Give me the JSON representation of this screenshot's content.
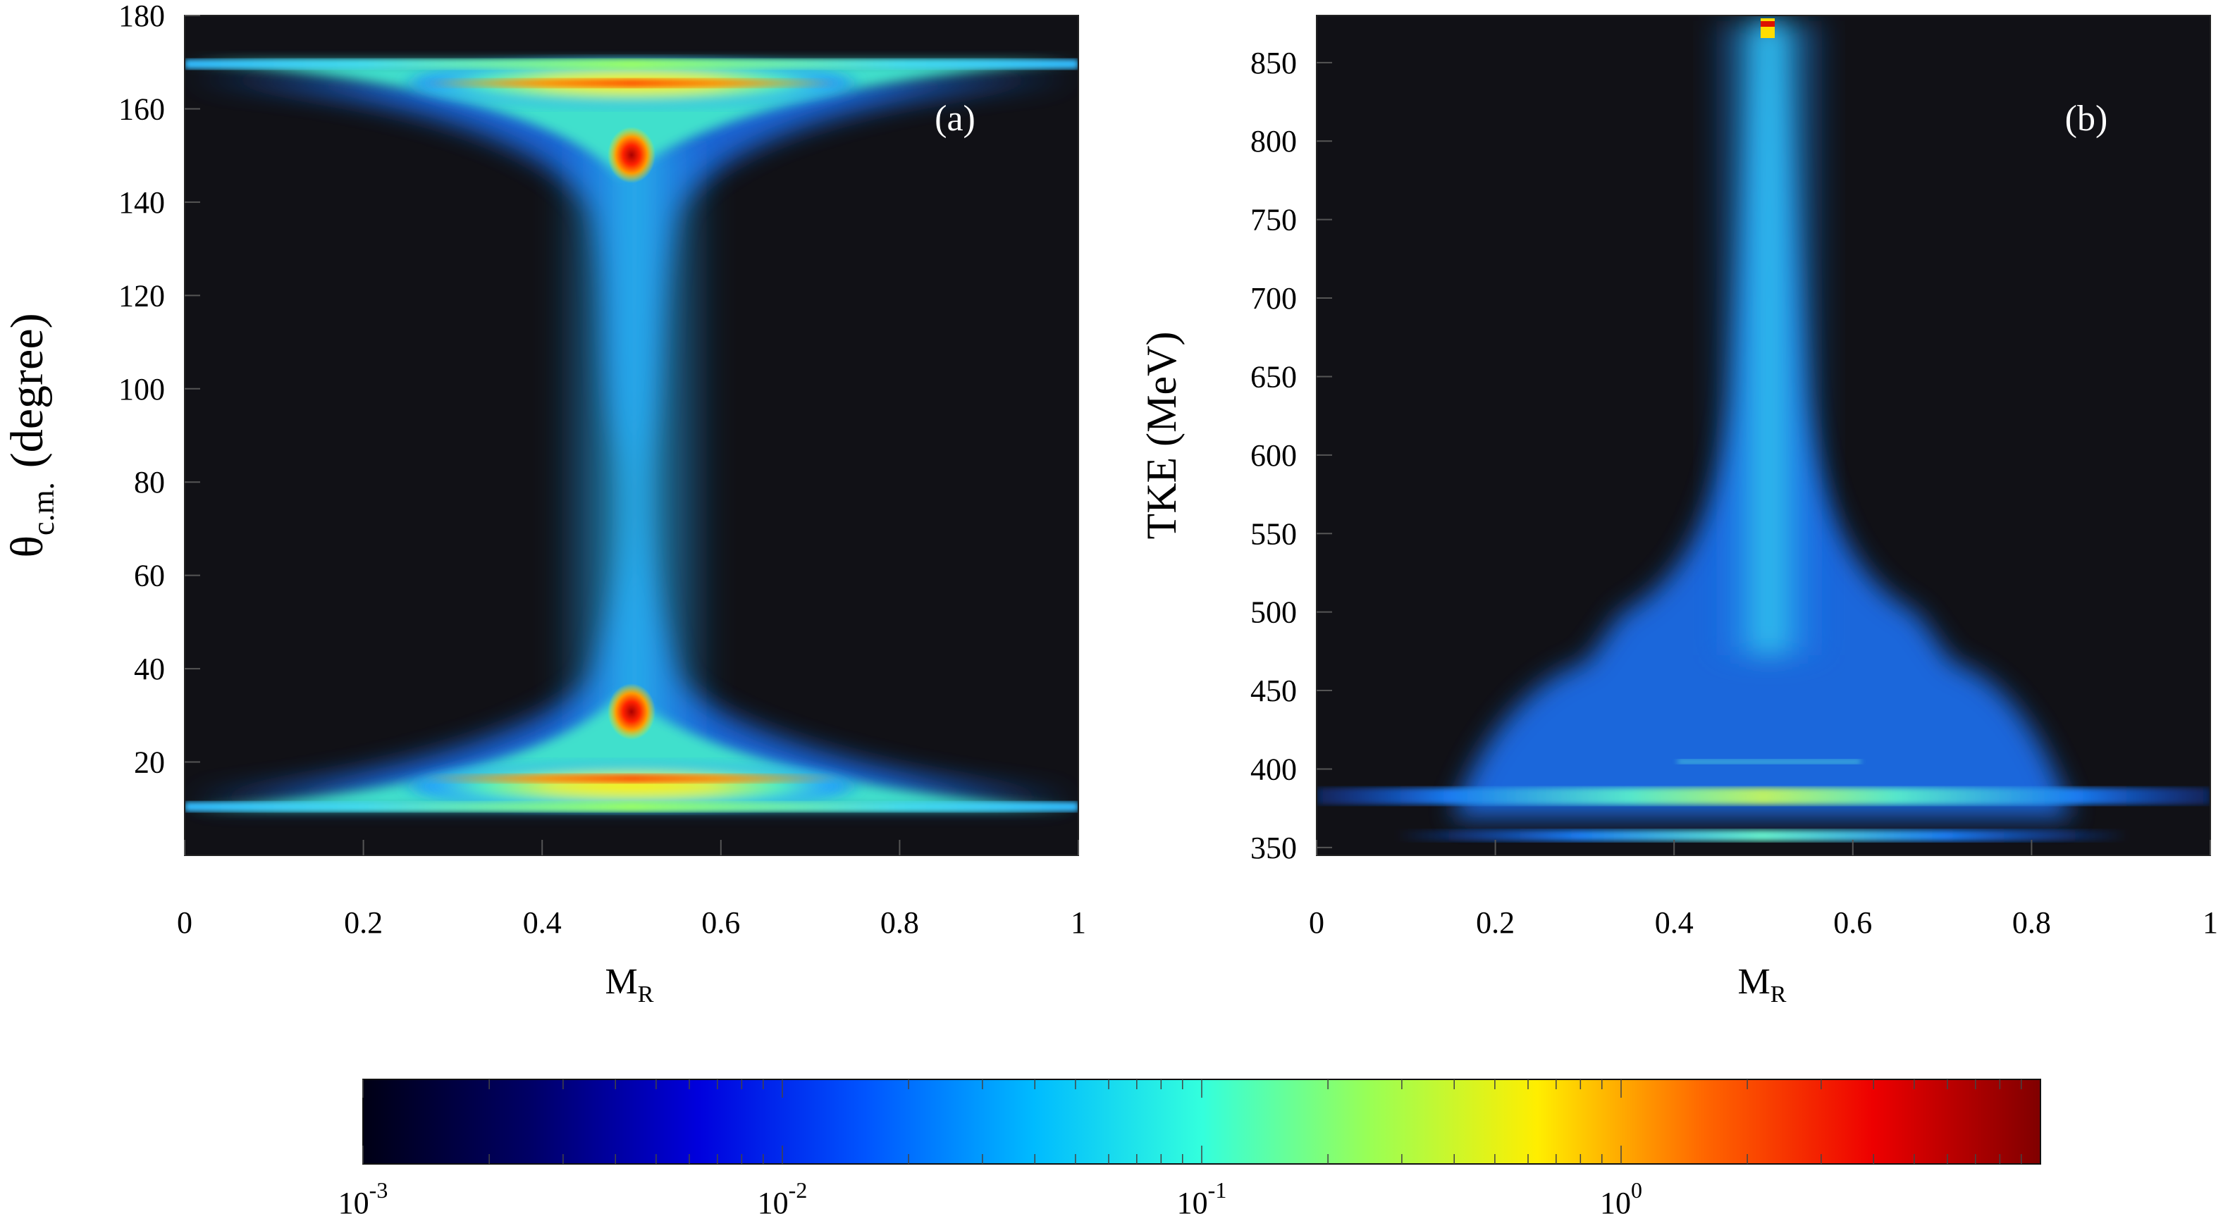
{
  "chart_data": [
    {
      "type": "heatmap",
      "panel_label": "(a)",
      "xlabel": "M",
      "xlabel_sub": "R",
      "ylabel": "θ",
      "ylabel_sub": "c.m.",
      "ylabel_unit": "(degree)",
      "xlim": [
        0,
        1
      ],
      "ylim": [
        0,
        180
      ],
      "xticks": [
        0,
        0.2,
        0.4,
        0.6,
        0.8,
        1
      ],
      "xtick_labels": [
        "0",
        "0.2",
        "0.4",
        "0.6",
        "0.8",
        "1"
      ],
      "yticks": [
        20,
        40,
        60,
        80,
        100,
        120,
        140,
        160,
        180
      ],
      "ytick_labels": [
        "20",
        "40",
        "60",
        "80",
        "100",
        "120",
        "140",
        "160",
        "180"
      ],
      "features": [
        {
          "name": "band_low",
          "y_range": [
            11,
            14
          ],
          "x_range": [
            0,
            1
          ],
          "level": 0.02
        },
        {
          "name": "band_high",
          "y_range": [
            169,
            171
          ],
          "x_range": [
            0,
            1
          ],
          "level": 0.02
        },
        {
          "name": "ridge_low",
          "y": 16,
          "x_center": 0.5,
          "level": 0.8
        },
        {
          "name": "ridge_high",
          "y": 165,
          "x_center": 0.5,
          "level": 0.8
        },
        {
          "name": "peak_low",
          "x": 0.5,
          "y": 35,
          "level": 3
        },
        {
          "name": "peak_high",
          "x": 0.5,
          "y": 146,
          "level": 3
        }
      ]
    },
    {
      "type": "heatmap",
      "panel_label": "(b)",
      "xlabel": "M",
      "xlabel_sub": "R",
      "ylabel": "TKE (MeV)",
      "xlim": [
        0,
        1
      ],
      "ylim": [
        345,
        880
      ],
      "xticks": [
        0,
        0.2,
        0.4,
        0.6,
        0.8,
        1
      ],
      "xtick_labels": [
        "0",
        "0.2",
        "0.4",
        "0.6",
        "0.8",
        "1"
      ],
      "yticks": [
        350,
        400,
        450,
        500,
        550,
        600,
        650,
        700,
        750,
        800,
        850
      ],
      "ytick_labels": [
        "350",
        "400",
        "450",
        "500",
        "550",
        "600",
        "650",
        "700",
        "750",
        "800",
        "850"
      ],
      "features": [
        {
          "name": "band_main",
          "y": 388,
          "x_range": [
            0,
            1
          ],
          "level": 0.03
        },
        {
          "name": "band_bright",
          "y": 386,
          "x_range": [
            0.2,
            0.8
          ],
          "level": 0.3
        },
        {
          "name": "band_lower",
          "y": 362,
          "x_range": [
            0.1,
            0.9
          ],
          "level": 0.05
        },
        {
          "name": "line_410",
          "y": 410,
          "x_range": [
            0.4,
            0.6
          ],
          "level": 0.1
        },
        {
          "name": "peak_top",
          "x": 0.5,
          "y": 873,
          "level": 3
        }
      ]
    }
  ],
  "colorbar": {
    "scale": "log",
    "range": [
      0.001,
      10
    ],
    "ticks": [
      {
        "value": 0.001,
        "base": "10",
        "exp": "-3"
      },
      {
        "value": 0.01,
        "base": "10",
        "exp": "-2"
      },
      {
        "value": 0.1,
        "base": "10",
        "exp": "-1"
      },
      {
        "value": 1,
        "base": "10",
        "exp": "0"
      }
    ],
    "colors": [
      "#000015",
      "#000066",
      "#0000dd",
      "#0055ff",
      "#00bbff",
      "#33ffdd",
      "#99ff55",
      "#ffee00",
      "#ff6600",
      "#ee0000",
      "#800000"
    ]
  }
}
